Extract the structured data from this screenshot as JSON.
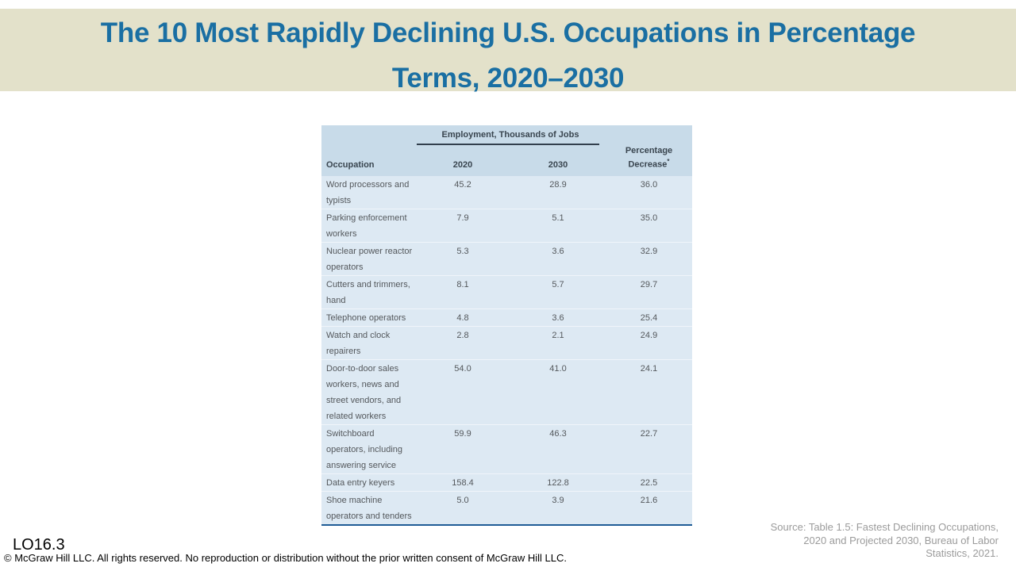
{
  "title": {
    "line1": "The 10 Most Rapidly Declining U.S. Occupations in Percentage",
    "line2": "Terms, 2020–2030"
  },
  "table": {
    "span_header": "Employment, Thousands of Jobs",
    "columns": {
      "occupation": "Occupation",
      "y2020": "2020",
      "y2030": "2030",
      "pct_line1": "Percentage",
      "pct_line2": "Decrease",
      "pct_footnote_mark": "*"
    },
    "rows": [
      {
        "occupation": "Word processors and typists",
        "y2020": "45.2",
        "y2030": "28.9",
        "pct": "36.0"
      },
      {
        "occupation": "Parking enforcement workers",
        "y2020": "7.9",
        "y2030": "5.1",
        "pct": "35.0"
      },
      {
        "occupation": "Nuclear power reactor operators",
        "y2020": "5.3",
        "y2030": "3.6",
        "pct": "32.9"
      },
      {
        "occupation": "Cutters and trimmers, hand",
        "y2020": "8.1",
        "y2030": "5.7",
        "pct": "29.7"
      },
      {
        "occupation": "Telephone operators",
        "y2020": "4.8",
        "y2030": "3.6",
        "pct": "25.4"
      },
      {
        "occupation": "Watch and clock repairers",
        "y2020": "2.8",
        "y2030": "2.1",
        "pct": "24.9"
      },
      {
        "occupation": "Door-to-door sales workers, news and street vendors, and related workers",
        "y2020": "54.0",
        "y2030": "41.0",
        "pct": "24.1"
      },
      {
        "occupation": "Switchboard operators, including answering service",
        "y2020": "59.9",
        "y2030": "46.3",
        "pct": "22.7"
      },
      {
        "occupation": "Data entry keyers",
        "y2020": "158.4",
        "y2030": "122.8",
        "pct": "22.5"
      },
      {
        "occupation": "Shoe machine operators and tenders",
        "y2020": "5.0",
        "y2030": "3.9",
        "pct": "21.6"
      }
    ]
  },
  "source": {
    "lines": [
      "Source: Table 1.5: Fastest Declining Occupations,",
      "2020 and Projected 2030, Bureau of Labor",
      "Statistics, 2021."
    ]
  },
  "footer": {
    "lo_tag": "LO16.3",
    "copyright": "© McGraw Hill LLC. All rights reserved. No reproduction or distribution without the prior written consent of McGraw Hill LLC."
  },
  "colors": {
    "title_text": "#1a6fa3",
    "title_band_bg": "#e3e1ca",
    "table_header_bg": "#c8dbe9",
    "table_body_bg": "#dde9f3",
    "table_bottom_border": "#1f5c96",
    "header_rule": "#323f4d",
    "body_text": "#54585c",
    "source_text": "#9b9b9b"
  },
  "chart_data": {
    "type": "table",
    "title": "The 10 Most Rapidly Declining U.S. Occupations in Percentage Terms, 2020–2030",
    "column_group": "Employment, Thousands of Jobs",
    "columns": [
      "Occupation",
      "2020",
      "2030",
      "Percentage Decrease*"
    ],
    "rows": [
      [
        "Word processors and typists",
        45.2,
        28.9,
        36.0
      ],
      [
        "Parking enforcement workers",
        7.9,
        5.1,
        35.0
      ],
      [
        "Nuclear power reactor operators",
        5.3,
        3.6,
        32.9
      ],
      [
        "Cutters and trimmers, hand",
        8.1,
        5.7,
        29.7
      ],
      [
        "Telephone operators",
        4.8,
        3.6,
        25.4
      ],
      [
        "Watch and clock repairers",
        2.8,
        2.1,
        24.9
      ],
      [
        "Door-to-door sales workers, news and street vendors, and related workers",
        54.0,
        41.0,
        24.1
      ],
      [
        "Switchboard operators, including answering service",
        59.9,
        46.3,
        22.7
      ],
      [
        "Data entry keyers",
        158.4,
        122.8,
        22.5
      ],
      [
        "Shoe machine operators and tenders",
        5.0,
        3.9,
        21.6
      ]
    ],
    "source": "Source: Table 1.5: Fastest Declining Occupations, 2020 and Projected 2030, Bureau of Labor Statistics, 2021."
  }
}
